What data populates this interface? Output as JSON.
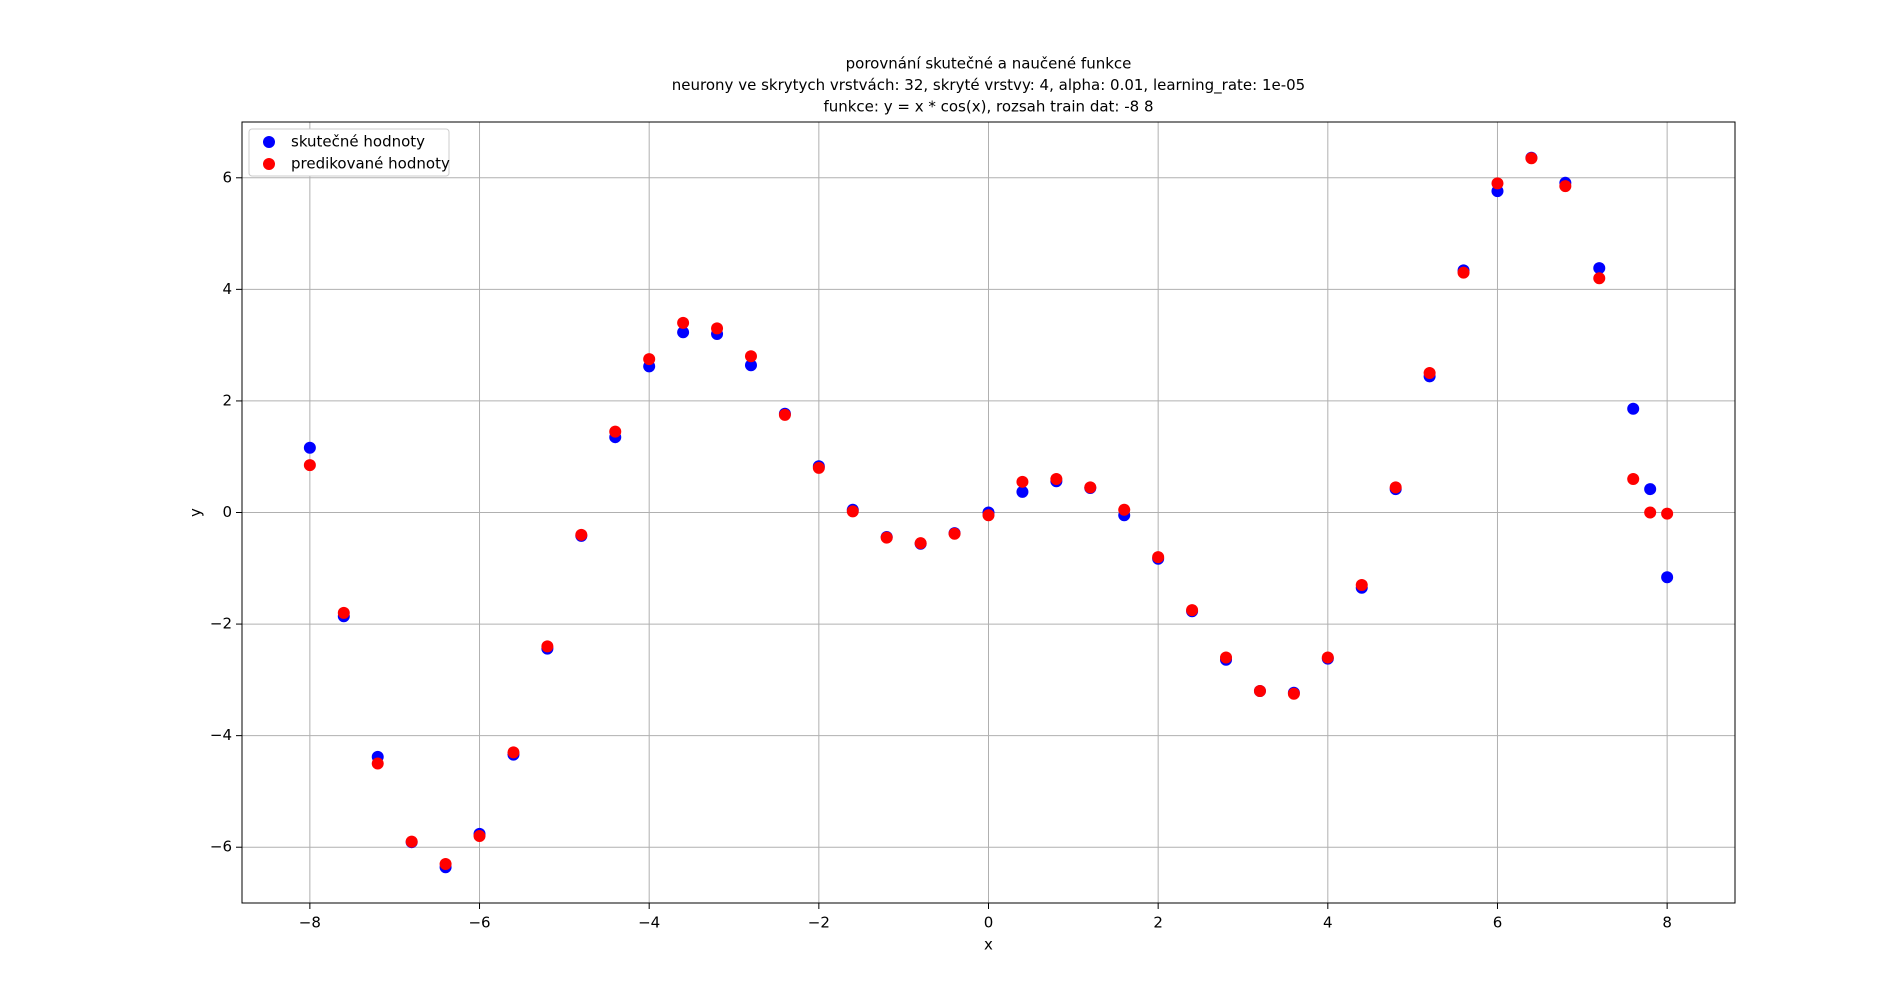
{
  "chart_data": {
    "type": "scatter",
    "title": [
      "porovnání skutečné a naučené funkce",
      "neurony ve skrytych vrstvách: 32, skryté vrstvy: 4, alpha: 0.01, learning_rate: 1e-05",
      "funkce: y = x * cos(x), rozsah train dat: -8 8"
    ],
    "x_label": "x",
    "y_label": "y",
    "x": [
      -8,
      -7.6,
      -7.2,
      -6.8,
      -6.4,
      -6.0,
      -5.6,
      -5.2,
      -4.8,
      -4.4,
      -4.0,
      -3.6,
      -3.2,
      -2.8,
      -2.4,
      -2.0,
      -1.6,
      -1.2,
      -0.8,
      -0.4,
      0,
      0.4,
      0.8,
      1.2,
      1.6,
      2.0,
      2.4,
      2.8,
      3.2,
      3.6,
      4.0,
      4.4,
      4.8,
      5.2,
      5.6,
      6.0,
      6.4,
      6.8,
      7.2,
      7.6,
      7.8,
      8.0
    ],
    "series": [
      {
        "name": "skutečné hodnoty",
        "color": "#0000ff",
        "values": [
          1.16,
          -1.86,
          -4.38,
          -5.91,
          -6.36,
          -5.76,
          -4.34,
          -2.44,
          -0.42,
          1.35,
          2.62,
          3.23,
          3.2,
          2.64,
          1.77,
          0.83,
          0.05,
          -0.44,
          -0.56,
          -0.37,
          0,
          0.37,
          0.56,
          0.44,
          -0.05,
          -0.83,
          -1.77,
          -2.64,
          -3.2,
          -3.23,
          -2.62,
          -1.35,
          0.42,
          2.44,
          4.34,
          5.76,
          6.36,
          5.91,
          4.38,
          1.86,
          0.42,
          -1.16
        ]
      },
      {
        "name": "predikované hodnoty",
        "color": "#ff0000",
        "values": [
          0.85,
          -1.8,
          -4.5,
          -5.9,
          -6.3,
          -5.8,
          -4.3,
          -2.4,
          -0.4,
          1.45,
          2.75,
          3.4,
          3.3,
          2.8,
          1.75,
          0.8,
          0.02,
          -0.45,
          -0.55,
          -0.38,
          -0.05,
          0.55,
          0.6,
          0.45,
          0.05,
          -0.8,
          -1.75,
          -2.6,
          -3.2,
          -3.25,
          -2.6,
          -1.3,
          0.45,
          2.5,
          4.3,
          5.9,
          6.35,
          5.85,
          4.2,
          0.6,
          0.0,
          -0.02
        ]
      }
    ],
    "xlim": [
      -8.8,
      8.8
    ],
    "ylim": [
      -7,
      7
    ],
    "xticks": [
      {
        "value": -8,
        "label": "−8"
      },
      {
        "value": -6,
        "label": "−6"
      },
      {
        "value": -4,
        "label": "−4"
      },
      {
        "value": -2,
        "label": "−2"
      },
      0,
      2,
      4,
      6,
      8
    ],
    "yticks": [
      {
        "value": -6,
        "label": "−6"
      },
      {
        "value": -4,
        "label": "−4"
      },
      {
        "value": -2,
        "label": "−2"
      },
      0,
      2,
      4,
      6
    ],
    "grid": true,
    "legend": "upper-left"
  }
}
